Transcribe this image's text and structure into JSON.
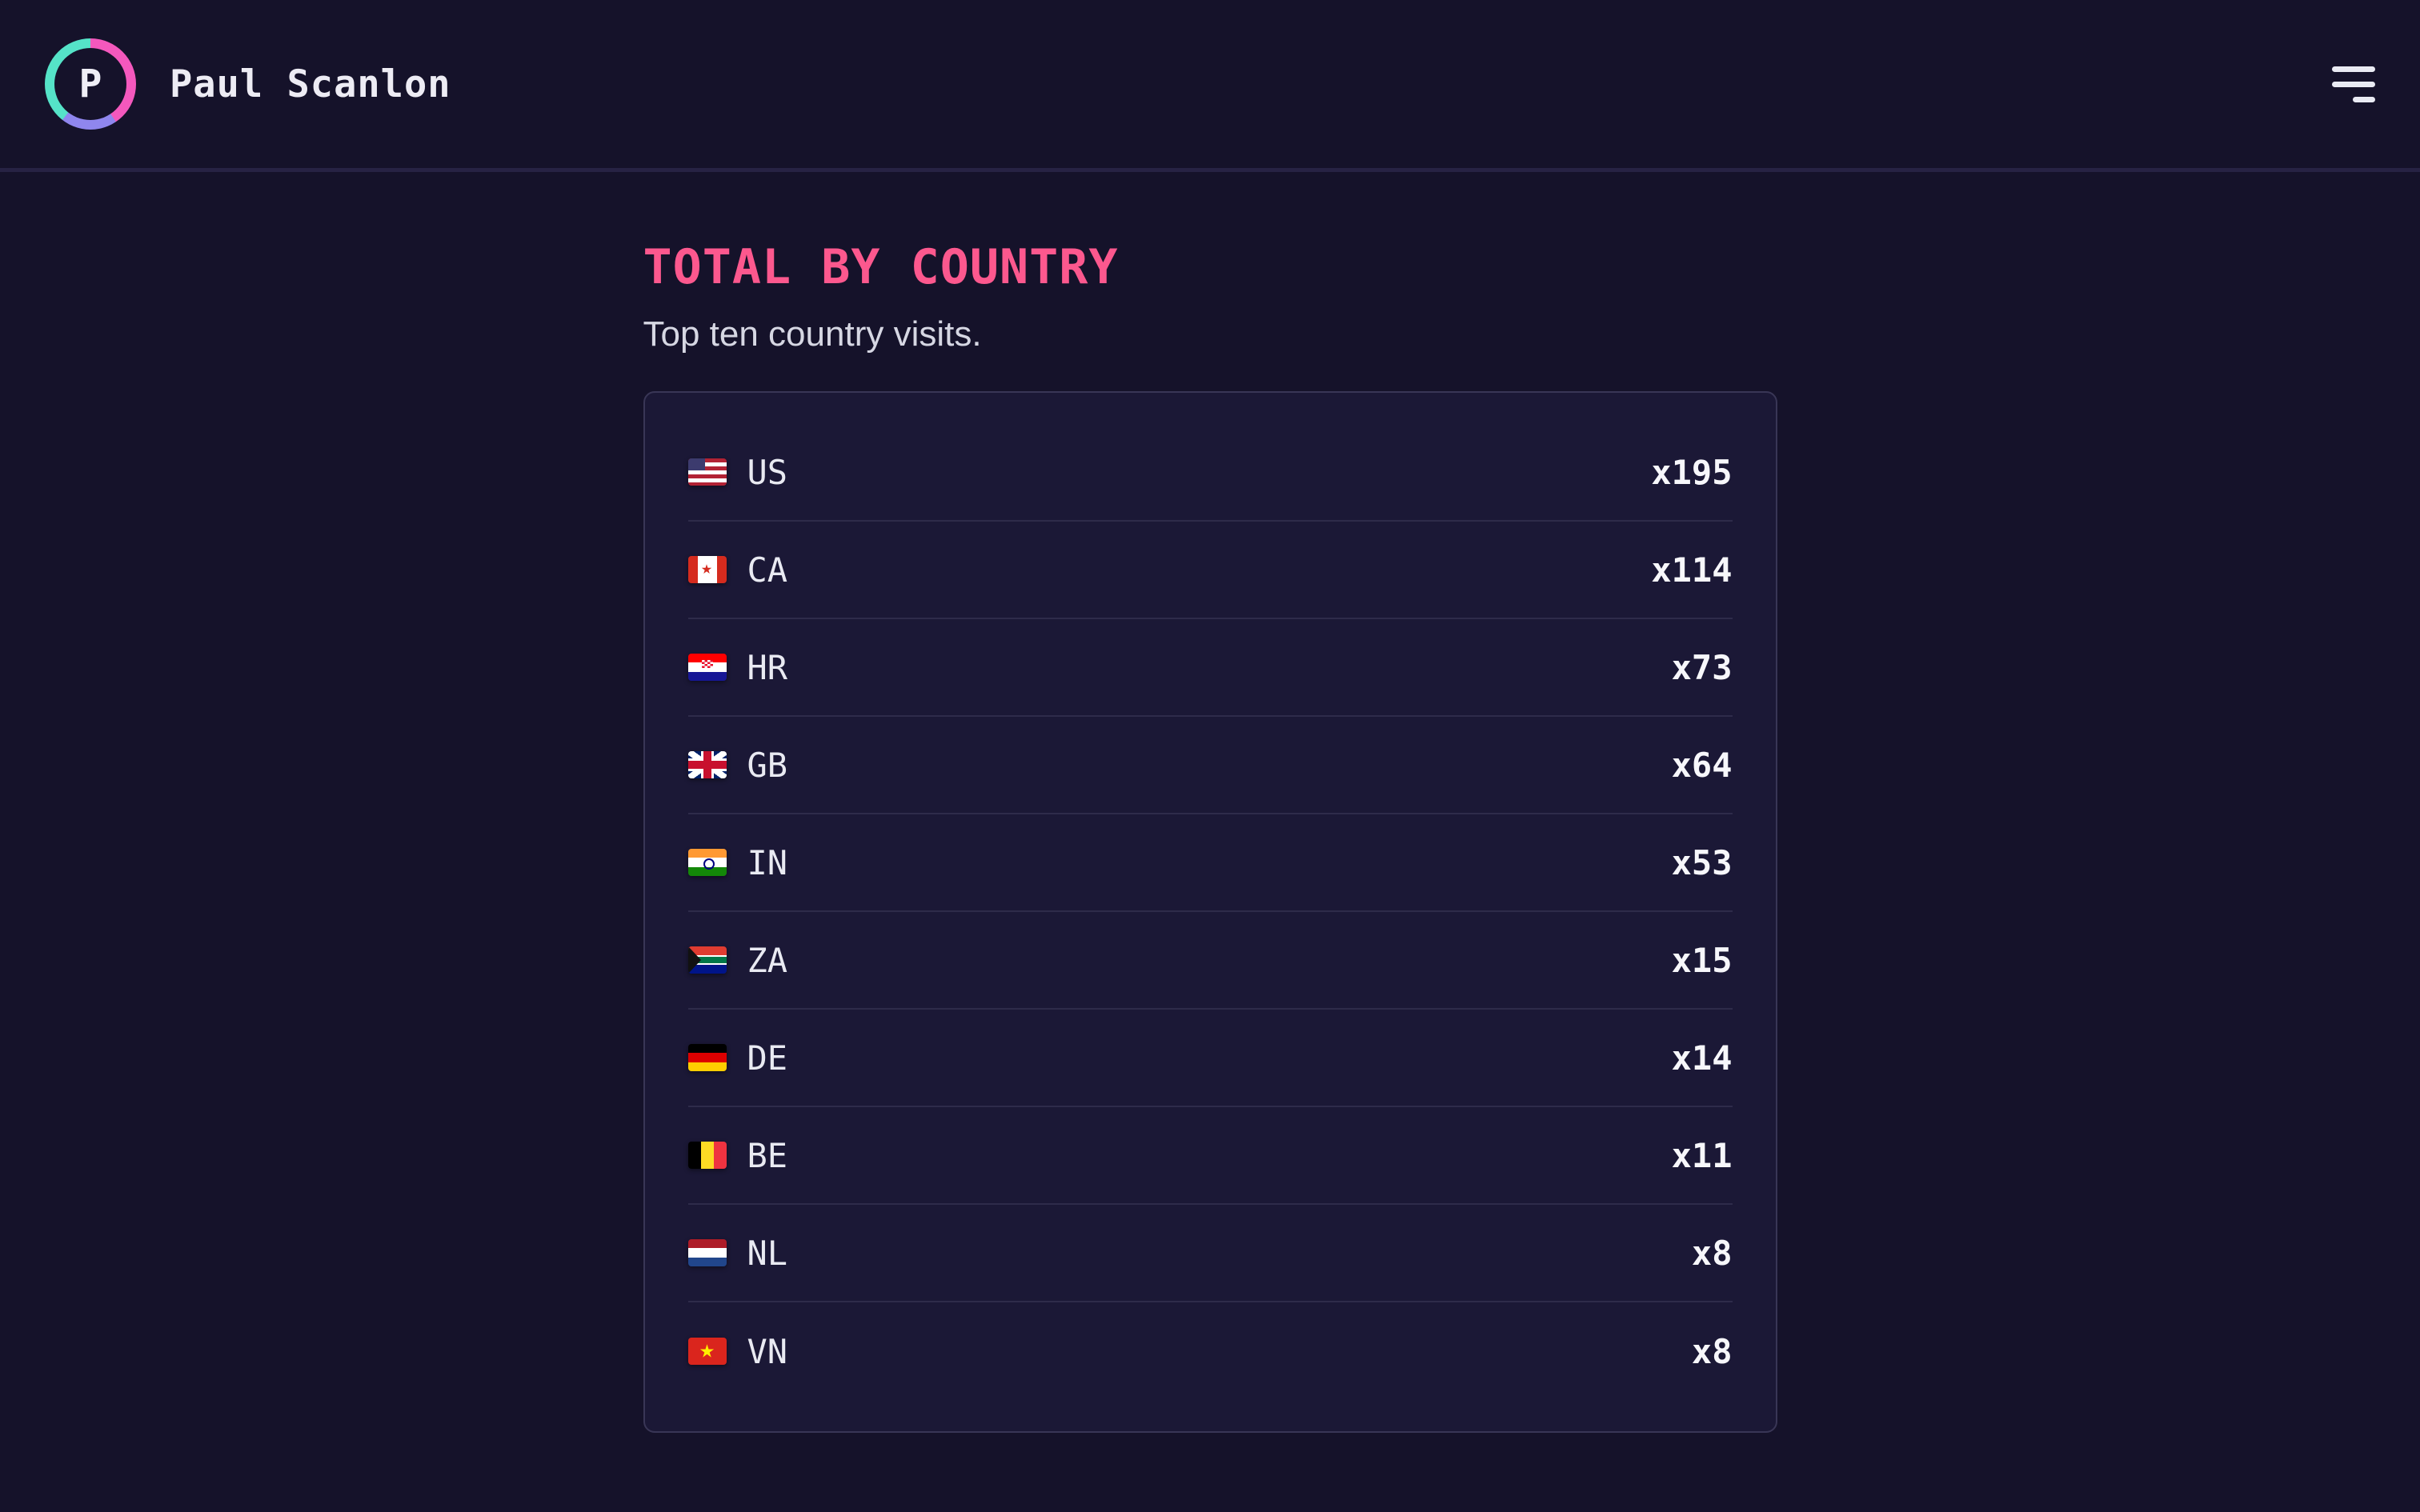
{
  "header": {
    "brand_name": "Paul Scanlon",
    "brand_initial": "P"
  },
  "main": {
    "title": "TOTAL BY COUNTRY",
    "subtitle": "Top ten country visits."
  },
  "card": {
    "rows": [
      {
        "code": "US",
        "flag": "us",
        "count_label": "x195"
      },
      {
        "code": "CA",
        "flag": "ca",
        "count_label": "x114"
      },
      {
        "code": "HR",
        "flag": "hr",
        "count_label": "x73"
      },
      {
        "code": "GB",
        "flag": "gb",
        "count_label": "x64"
      },
      {
        "code": "IN",
        "flag": "in",
        "count_label": "x53"
      },
      {
        "code": "ZA",
        "flag": "za",
        "count_label": "x15"
      },
      {
        "code": "DE",
        "flag": "de",
        "count_label": "x14"
      },
      {
        "code": "BE",
        "flag": "be",
        "count_label": "x11"
      },
      {
        "code": "NL",
        "flag": "nl",
        "count_label": "x8"
      },
      {
        "code": "VN",
        "flag": "vn",
        "count_label": "x8"
      }
    ]
  },
  "colors": {
    "page-bg": "#15122a",
    "card-bg": "#1b1836",
    "card-border": "#393656",
    "divider": "#2e2b4a",
    "accent-pink": "#fc588e",
    "ring-teal": "#55e3c8",
    "ring-pink": "#f458bd",
    "ring-purple": "#8f86ee"
  }
}
